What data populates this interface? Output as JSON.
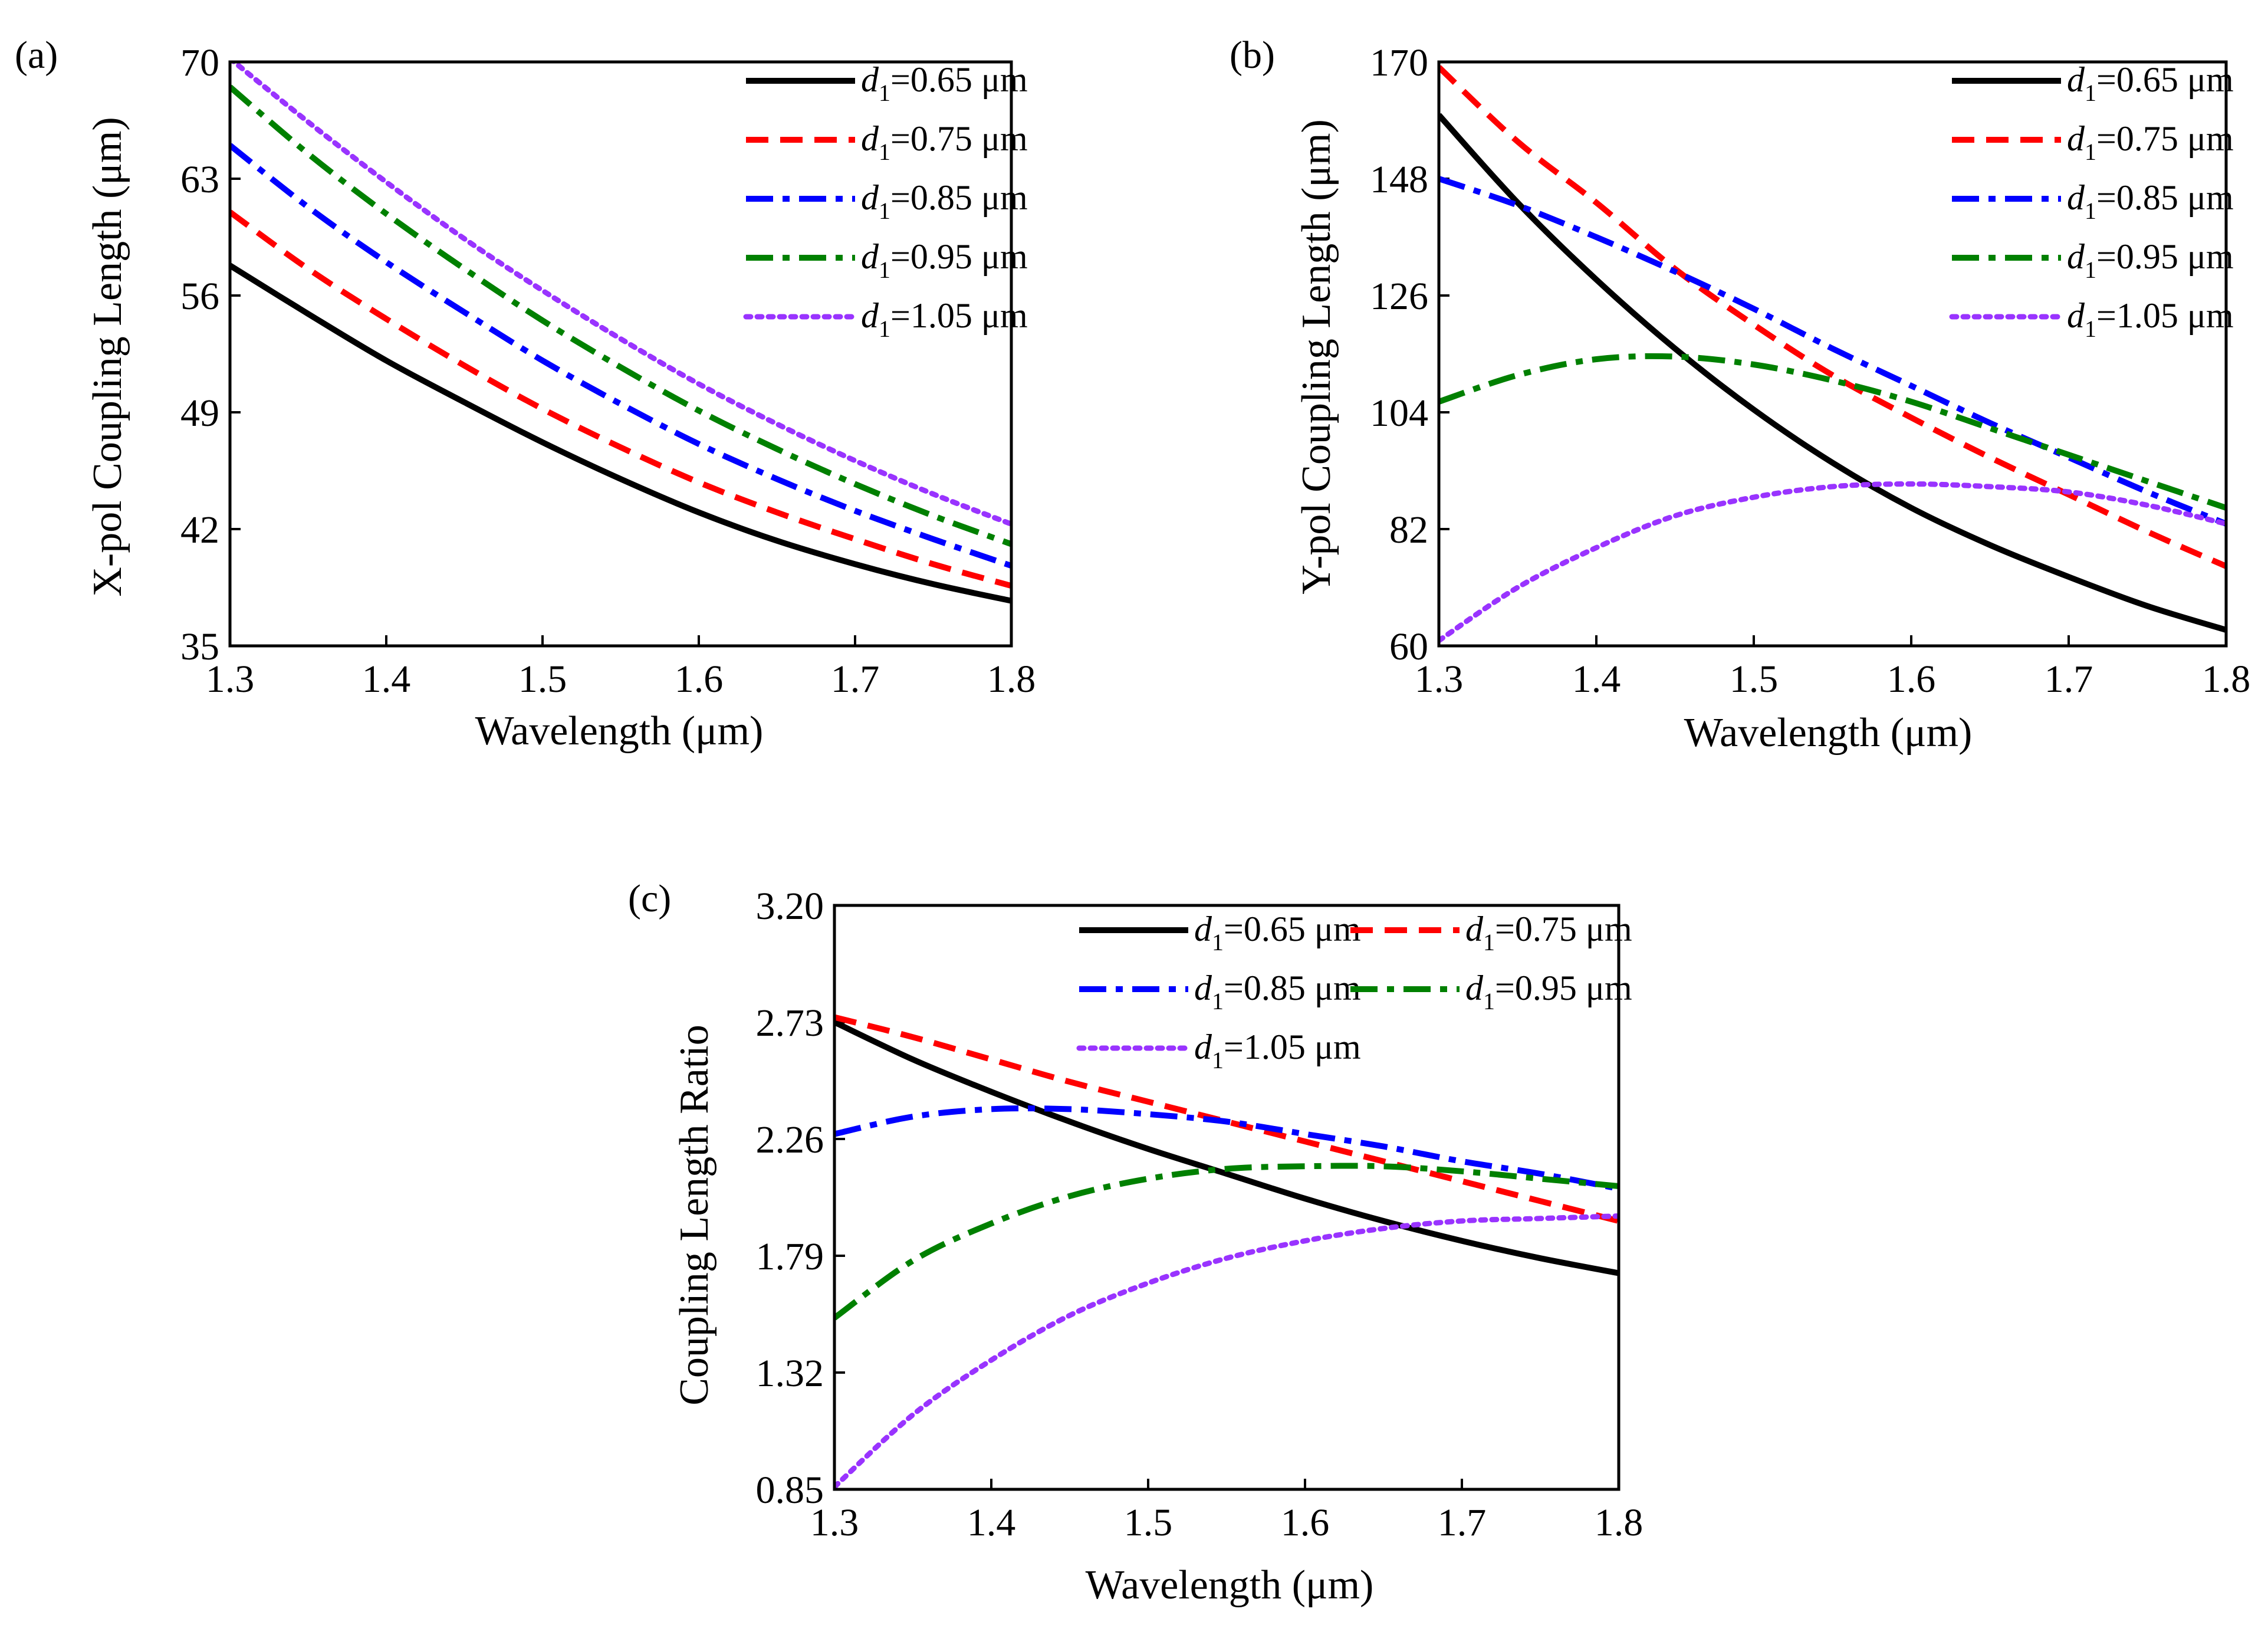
{
  "chart_data": [
    {
      "panel_label": "(a)",
      "type": "line",
      "xlabel": "Wavelength (μm)",
      "ylabel": "X-pol Coupling Length (μm)",
      "xlim": [
        1.3,
        1.8
      ],
      "ylim": [
        35,
        70
      ],
      "xticks": [
        "1.3",
        "1.4",
        "1.5",
        "1.6",
        "1.7",
        "1.8"
      ],
      "yticks": [
        "35",
        "42",
        "49",
        "56",
        "63",
        "70"
      ],
      "x": [
        1.3,
        1.35,
        1.4,
        1.45,
        1.5,
        1.55,
        1.6,
        1.65,
        1.7,
        1.75,
        1.8
      ],
      "legend_position": "top-right",
      "series": [
        {
          "prefix": "d",
          "sub": "1",
          "label": "=0.65 μm",
          "color": "#000000",
          "style": "solid",
          "values": [
            57.8,
            54.9,
            52.1,
            49.6,
            47.2,
            45.0,
            43.0,
            41.3,
            39.9,
            38.7,
            37.7
          ]
        },
        {
          "prefix": "d",
          "sub": "1",
          "label": "=0.75 μm",
          "color": "#ff0000",
          "style": "dash",
          "values": [
            61.0,
            57.6,
            54.6,
            51.8,
            49.2,
            46.9,
            44.8,
            43.0,
            41.4,
            39.9,
            38.6
          ]
        },
        {
          "prefix": "d",
          "sub": "1",
          "label": "=0.85 μm",
          "color": "#0000ff",
          "style": "dashdot",
          "values": [
            65.0,
            61.3,
            58.0,
            55.0,
            52.1,
            49.5,
            47.1,
            45.0,
            43.1,
            41.4,
            39.8
          ]
        },
        {
          "prefix": "d",
          "sub": "1",
          "label": "=0.95 μm",
          "color": "#008000",
          "style": "dashdot",
          "values": [
            68.5,
            64.5,
            60.9,
            57.6,
            54.5,
            51.7,
            49.1,
            46.8,
            44.7,
            42.8,
            41.1
          ]
        },
        {
          "prefix": "d",
          "sub": "1",
          "label": "=1.05 μm",
          "color": "#9933ff",
          "style": "dot",
          "values": [
            70.2,
            66.4,
            62.8,
            59.4,
            56.3,
            53.4,
            50.7,
            48.3,
            46.1,
            44.1,
            42.3
          ]
        }
      ]
    },
    {
      "panel_label": "(b)",
      "type": "line",
      "xlabel": "Wavelength (μm)",
      "ylabel": "Y-pol Coupling Length (μm)",
      "xlim": [
        1.3,
        1.8
      ],
      "ylim": [
        60,
        170
      ],
      "xticks": [
        "1.3",
        "1.4",
        "1.5",
        "1.6",
        "1.7",
        "1.8"
      ],
      "yticks": [
        "60",
        "82",
        "104",
        "126",
        "148",
        "170"
      ],
      "x": [
        1.3,
        1.35,
        1.4,
        1.45,
        1.5,
        1.55,
        1.6,
        1.65,
        1.7,
        1.75,
        1.8
      ],
      "legend_position": "top-right",
      "series": [
        {
          "prefix": "d",
          "sub": "1",
          "label": "=0.65 μm",
          "color": "#000000",
          "style": "solid",
          "values": [
            160.0,
            143.5,
            129.0,
            116.0,
            104.5,
            94.5,
            86.0,
            79.0,
            73.0,
            67.5,
            63.0
          ]
        },
        {
          "prefix": "d",
          "sub": "1",
          "label": "=0.75 μm",
          "color": "#ff0000",
          "style": "dash",
          "values": [
            169.0,
            155.0,
            143.5,
            131.0,
            120.5,
            111.0,
            103.0,
            95.5,
            88.5,
            81.5,
            75.0
          ]
        },
        {
          "prefix": "d",
          "sub": "1",
          "label": "=0.85 μm",
          "color": "#0000ff",
          "style": "dashdot",
          "values": [
            148.0,
            143.0,
            137.0,
            130.5,
            123.5,
            116.0,
            109.0,
            102.0,
            95.5,
            89.0,
            83.0
          ]
        },
        {
          "prefix": "d",
          "sub": "1",
          "label": "=0.95 μm",
          "color": "#008000",
          "style": "dashdot",
          "values": [
            106.0,
            111.0,
            114.0,
            114.5,
            113.0,
            110.0,
            106.0,
            101.0,
            96.0,
            91.0,
            86.0
          ]
        },
        {
          "prefix": "d",
          "sub": "1",
          "label": "=1.05 μm",
          "color": "#9933ff",
          "style": "dot",
          "values": [
            61.0,
            71.0,
            78.5,
            84.5,
            88.0,
            90.0,
            90.5,
            90.0,
            89.0,
            86.5,
            83.0
          ]
        }
      ]
    },
    {
      "panel_label": "(c)",
      "type": "line",
      "xlabel": "Wavelength (μm)",
      "ylabel": "Coupling Length Ratio",
      "xlim": [
        1.3,
        1.8
      ],
      "ylim": [
        0.85,
        3.2
      ],
      "xticks": [
        "1.3",
        "1.4",
        "1.5",
        "1.6",
        "1.7",
        "1.8"
      ],
      "yticks": [
        "0.85",
        "1.32",
        "1.79",
        "2.26",
        "2.73",
        "3.20"
      ],
      "x": [
        1.3,
        1.35,
        1.4,
        1.45,
        1.5,
        1.55,
        1.6,
        1.65,
        1.7,
        1.75,
        1.8
      ],
      "legend_position": "top-right",
      "series": [
        {
          "prefix": "d",
          "sub": "1",
          "label": "=0.65 μm",
          "color": "#000000",
          "style": "solid",
          "values": [
            2.73,
            2.58,
            2.45,
            2.33,
            2.22,
            2.12,
            2.02,
            1.93,
            1.85,
            1.78,
            1.72
          ]
        },
        {
          "prefix": "d",
          "sub": "1",
          "label": "=0.75 μm",
          "color": "#ff0000",
          "style": "dash",
          "values": [
            2.75,
            2.67,
            2.58,
            2.49,
            2.41,
            2.33,
            2.25,
            2.17,
            2.09,
            2.01,
            1.93
          ]
        },
        {
          "prefix": "d",
          "sub": "1",
          "label": "=0.85 μm",
          "color": "#0000ff",
          "style": "dashdot",
          "values": [
            2.28,
            2.35,
            2.38,
            2.38,
            2.36,
            2.33,
            2.28,
            2.23,
            2.17,
            2.12,
            2.06
          ]
        },
        {
          "prefix": "d",
          "sub": "1",
          "label": "=0.95 μm",
          "color": "#008000",
          "style": "dashdot",
          "values": [
            1.54,
            1.77,
            1.92,
            2.03,
            2.1,
            2.14,
            2.15,
            2.15,
            2.13,
            2.1,
            2.07
          ]
        },
        {
          "prefix": "d",
          "sub": "1",
          "label": "=1.05 μm",
          "color": "#9933ff",
          "style": "dot",
          "values": [
            0.86,
            1.15,
            1.37,
            1.55,
            1.68,
            1.78,
            1.85,
            1.9,
            1.93,
            1.94,
            1.95
          ]
        }
      ]
    }
  ]
}
